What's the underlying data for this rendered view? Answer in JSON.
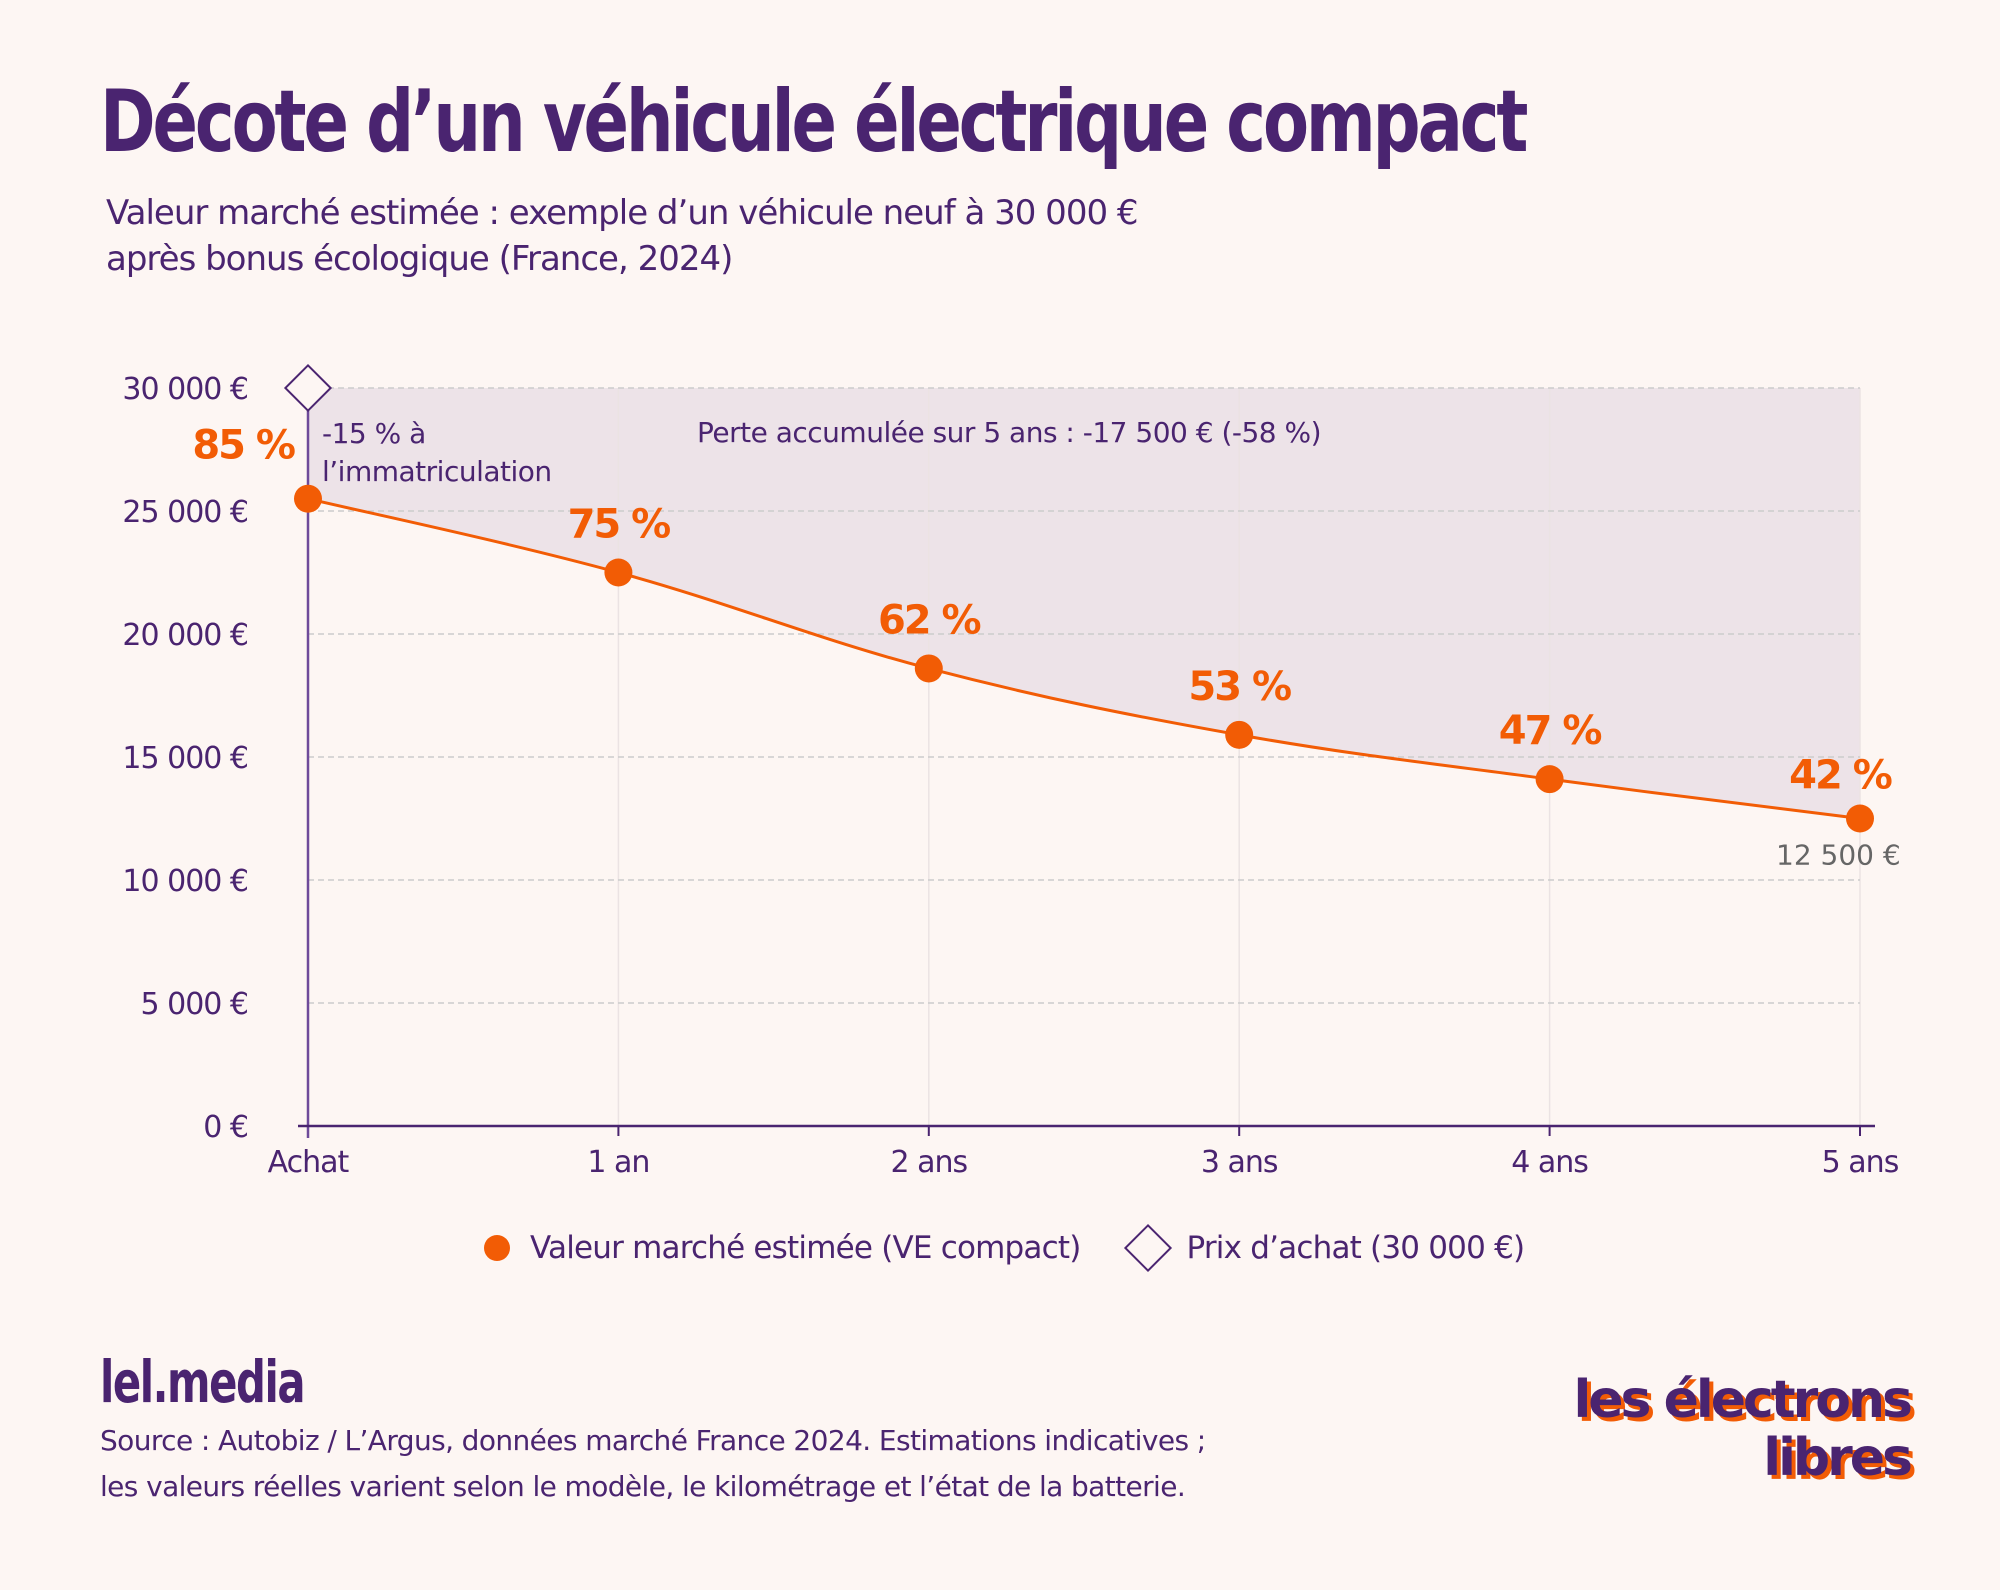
{
  "header": {
    "title": "Décote d’un véhicule électrique compact",
    "subtitle_line1": "Valeur marché estimée : exemple d’un véhicule neuf à 30 000 €",
    "subtitle_line2": "après bonus écologique (France, 2024)"
  },
  "colors": {
    "primary": "#4a2470",
    "accent": "#f25c05",
    "background": "#fdf6f3",
    "loss_area": "#ede3e8",
    "grid": "#cccccc",
    "end_value_text": "#666666"
  },
  "chart_data": {
    "type": "line",
    "title": "Décote d’un véhicule électrique compact",
    "xlabel": "",
    "ylabel": "",
    "categories": [
      "Achat",
      "1 an",
      "2 ans",
      "3 ans",
      "4 ans",
      "5 ans"
    ],
    "series": [
      {
        "name": "Valeur marché estimée (VE compact)",
        "values": [
          25500,
          22500,
          18600,
          15900,
          14100,
          12500
        ],
        "labels": [
          "85 %",
          "75 %",
          "62 %",
          "53 %",
          "47 %",
          "42 %"
        ]
      }
    ],
    "reference": {
      "name": "Prix d’achat (30 000 €)",
      "value": 30000
    },
    "ylim": [
      0,
      30000
    ],
    "yticks": [
      0,
      5000,
      10000,
      15000,
      20000,
      25000,
      30000
    ],
    "ytick_labels": [
      "0 €",
      "5 000 €",
      "10 000 €",
      "15 000 €",
      "20 000 €",
      "25 000 €",
      "30 000 €"
    ],
    "grid": true,
    "legend_position": "bottom",
    "annotations": {
      "registration_line1": "-15 % à",
      "registration_line2": "l’immatriculation",
      "total_loss": "Perte accumulée sur 5 ans : -17 500 € (-58 %)",
      "end_value": "12 500 €"
    }
  },
  "legend": {
    "series_label": "Valeur marché estimée (VE compact)",
    "reference_label": "Prix d’achat (30 000 €)"
  },
  "footer": {
    "brand": "lel.media",
    "source_line1": "Source : Autobiz / L’Argus, données marché France 2024. Estimations indicatives ;",
    "source_line2": "les valeurs réelles varient selon le modèle, le kilométrage et l’état de la batterie.",
    "logo_line1": "les électrons",
    "logo_line2": "libres"
  }
}
